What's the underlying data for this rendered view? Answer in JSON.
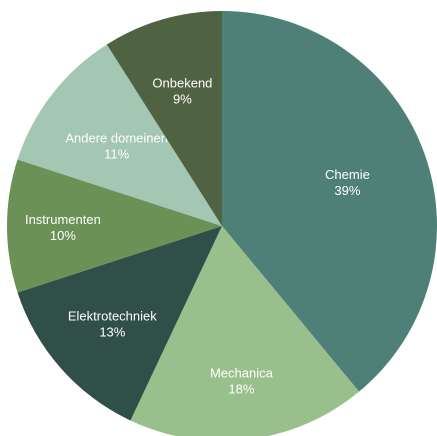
{
  "chart_data": {
    "type": "pie",
    "title": "",
    "slices": [
      {
        "label": "Chemie",
        "percent_label": "39%",
        "value": 39,
        "color": "#4e8078"
      },
      {
        "label": "Mechanica",
        "percent_label": "18%",
        "value": 18,
        "color": "#98bf8c"
      },
      {
        "label": "Elektrotechniek",
        "percent_label": "13%",
        "value": 13,
        "color": "#2f4f48"
      },
      {
        "label": "Instrumenten",
        "percent_label": "10%",
        "value": 10,
        "color": "#6b9157"
      },
      {
        "label": "Andere domeinen",
        "percent_label": "11%",
        "value": 11,
        "color": "#a3c7b2"
      },
      {
        "label": "Onbekend",
        "percent_label": "9%",
        "value": 9,
        "color": "#4f6343"
      }
    ],
    "start_angle": "12 o'clock",
    "direction": "clockwise",
    "legend": "none"
  }
}
